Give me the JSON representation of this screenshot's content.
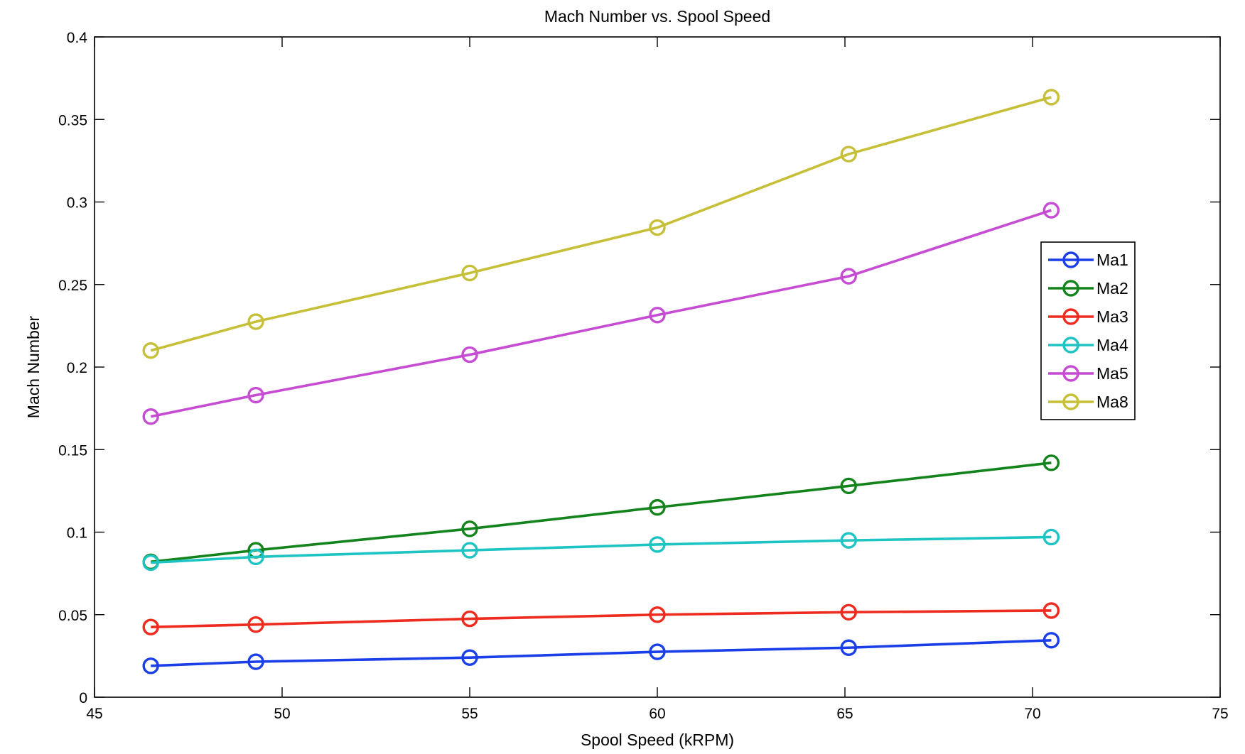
{
  "chart_data": {
    "type": "line",
    "title": "Mach Number vs. Spool Speed",
    "xlabel": "Spool Speed (kRPM)",
    "ylabel": "Mach Number",
    "xlim": [
      45,
      75
    ],
    "ylim": [
      0,
      0.4
    ],
    "xticks": [
      45,
      50,
      55,
      60,
      65,
      70,
      75
    ],
    "yticks": [
      0,
      0.05,
      0.1,
      0.15,
      0.2,
      0.25,
      0.3,
      0.35,
      0.4
    ],
    "xtick_labels": [
      "45",
      "50",
      "55",
      "60",
      "65",
      "70",
      "75"
    ],
    "ytick_labels": [
      "0",
      "0.05",
      "0.1",
      "0.15",
      "0.2",
      "0.25",
      "0.3",
      "0.35",
      "0.4"
    ],
    "grid": false,
    "legend_position": "right",
    "x": [
      46.5,
      49.3,
      55.0,
      60.0,
      65.1,
      70.5
    ],
    "series": [
      {
        "name": "Ma1",
        "color": "#1a3ee8",
        "values": [
          0.019,
          0.0215,
          0.024,
          0.0275,
          0.03,
          0.0345
        ]
      },
      {
        "name": "Ma2",
        "color": "#13831c",
        "values": [
          0.082,
          0.089,
          0.102,
          0.115,
          0.128,
          0.142
        ]
      },
      {
        "name": "Ma3",
        "color": "#ee2b1f",
        "values": [
          0.0425,
          0.044,
          0.0475,
          0.05,
          0.0515,
          0.0525
        ]
      },
      {
        "name": "Ma4",
        "color": "#1ec4c4",
        "values": [
          0.0815,
          0.085,
          0.089,
          0.0925,
          0.095,
          0.097
        ]
      },
      {
        "name": "Ma5",
        "color": "#c64cd3",
        "values": [
          0.17,
          0.183,
          0.2075,
          0.2315,
          0.255,
          0.295
        ]
      },
      {
        "name": "Ma8",
        "color": "#c6c038",
        "values": [
          0.21,
          0.2275,
          0.257,
          0.2845,
          0.329,
          0.3635
        ]
      }
    ]
  }
}
